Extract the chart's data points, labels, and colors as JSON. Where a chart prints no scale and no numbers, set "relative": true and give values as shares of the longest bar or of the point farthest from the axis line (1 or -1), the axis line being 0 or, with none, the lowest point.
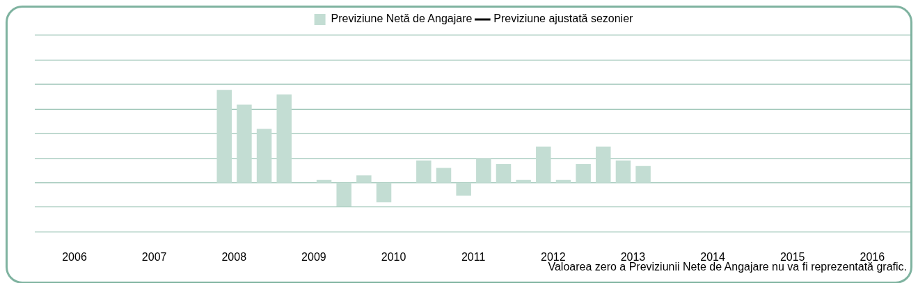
{
  "chart_data": {
    "type": "bar",
    "relative": true,
    "legend": "top",
    "ref_lines": [
      {
        "axis": "y",
        "value": 1.59,
        "color": "#7fb3a0"
      },
      {
        "axis": "y",
        "value": 1.32,
        "color": "#7fb3a0"
      },
      {
        "axis": "y",
        "value": 1.06,
        "color": "#7fb3a0"
      },
      {
        "axis": "y",
        "value": 0.79,
        "color": "#7fb3a0"
      },
      {
        "axis": "y",
        "value": 0.53,
        "color": "#7fb3a0"
      },
      {
        "axis": "y",
        "value": 0.26,
        "color": "#7fb3a0"
      },
      {
        "axis": "y",
        "value": 0,
        "color": "#7fb3a0"
      },
      {
        "axis": "y",
        "value": -0.26,
        "color": "#7fb3a0"
      },
      {
        "axis": "y",
        "value": -0.53,
        "color": "#7fb3a0"
      }
    ],
    "annotations": [
      "Valoarea zero a Previziunii Nete de Angajare nu va fi reprezentată grafic."
    ],
    "categories": [
      null,
      "2006",
      null,
      null,
      null,
      "2007",
      null,
      null,
      null,
      "2008",
      null,
      null,
      null,
      "2009",
      null,
      null,
      null,
      "2010",
      null,
      null,
      null,
      "2011",
      null,
      null,
      null,
      "2012",
      null,
      null,
      null,
      "2013",
      null,
      null,
      null,
      "2014",
      null,
      null,
      null,
      "2015",
      null,
      null,
      null,
      "2016",
      null,
      null
    ],
    "series": [
      {
        "name": "Previziune Netă de Angajare",
        "color": "#c3ddd3",
        "values": [
          null,
          null,
          null,
          null,
          null,
          null,
          null,
          null,
          null,
          1,
          0.84,
          0.58,
          0.95,
          0,
          0.03,
          -0.26,
          0.08,
          -0.21,
          0,
          0.24,
          0.16,
          -0.14,
          0.26,
          0.2,
          0.03,
          0.39,
          0.03,
          0.2,
          0.39,
          0.24,
          0.18,
          null,
          null,
          null,
          null,
          null,
          null,
          null,
          null,
          null,
          null,
          null,
          null,
          null
        ]
      },
      {
        "name": "Previziune ajustată sezonier",
        "type": "line",
        "color": "#000000",
        "values": [
          null,
          null,
          null,
          null,
          null,
          null,
          null,
          null,
          null,
          null,
          null,
          null,
          null,
          null,
          null,
          null,
          null,
          null,
          null,
          null,
          null,
          null,
          null,
          null,
          null,
          null,
          null,
          null,
          null,
          null,
          null,
          null,
          null,
          null,
          null,
          null,
          null,
          null,
          null,
          null,
          null,
          null,
          null,
          null
        ]
      }
    ]
  }
}
